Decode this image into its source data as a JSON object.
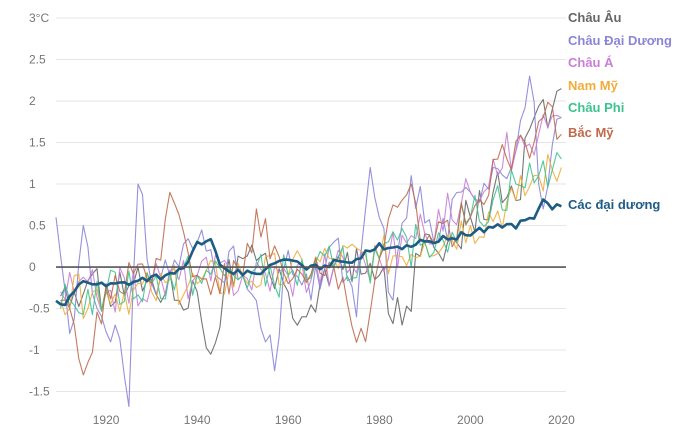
{
  "chart_data": {
    "type": "line",
    "title": "",
    "xlabel": "",
    "ylabel": "",
    "xlim": [
      1909,
      2021
    ],
    "ylim": [
      -1.65,
      3
    ],
    "grid": true,
    "legend_placement": "right",
    "x_ticks": [
      1920,
      1940,
      1960,
      1980,
      2000,
      2020
    ],
    "y_ticks": [
      -1.5,
      -1,
      -0.5,
      0,
      0.5,
      1,
      1.5,
      2,
      2.5,
      3
    ],
    "y_tick_labels": [
      "-1.5",
      "-1",
      "-0.5",
      "0",
      "0.5",
      "1",
      "1.5",
      "2",
      "2.5",
      "3°C"
    ],
    "series": [
      {
        "name": "Châu Âu",
        "color": "#666666",
        "anchors": [
          [
            1910,
            -0.35
          ],
          [
            1920,
            -0.25
          ],
          [
            1930,
            -0.15
          ],
          [
            1940,
            -0.3
          ],
          [
            1943,
            -1.05
          ],
          [
            1946,
            -0.2
          ],
          [
            1950,
            0.1
          ],
          [
            1956,
            -0.1
          ],
          [
            1960,
            -0.3
          ],
          [
            1963,
            -0.6
          ],
          [
            1970,
            0.0
          ],
          [
            1980,
            -0.1
          ],
          [
            1985,
            -0.7
          ],
          [
            1990,
            0.4
          ],
          [
            1995,
            0.3
          ],
          [
            2000,
            0.6
          ],
          [
            2005,
            0.9
          ],
          [
            2010,
            0.8
          ],
          [
            2014,
            1.8
          ],
          [
            2018,
            1.9
          ],
          [
            2020,
            2.15
          ]
        ]
      },
      {
        "name": "Châu Đại Dương",
        "color": "#8b85d8",
        "anchors": [
          [
            1909,
            0.6
          ],
          [
            1912,
            -0.8
          ],
          [
            1915,
            0.5
          ],
          [
            1918,
            -0.5
          ],
          [
            1922,
            -0.7
          ],
          [
            1925,
            -1.68
          ],
          [
            1927,
            1.0
          ],
          [
            1930,
            -0.2
          ],
          [
            1940,
            0.3
          ],
          [
            1950,
            -0.1
          ],
          [
            1957,
            -1.25
          ],
          [
            1960,
            0.2
          ],
          [
            1965,
            -0.4
          ],
          [
            1970,
            0.3
          ],
          [
            1975,
            -0.6
          ],
          [
            1978,
            1.2
          ],
          [
            1983,
            -0.4
          ],
          [
            1987,
            1.1
          ],
          [
            1992,
            0.3
          ],
          [
            2000,
            0.9
          ],
          [
            2005,
            1.2
          ],
          [
            2010,
            1.4
          ],
          [
            2013,
            2.3
          ],
          [
            2016,
            0.7
          ],
          [
            2020,
            1.8
          ]
        ]
      },
      {
        "name": "Châu Á",
        "color": "#c97fd6",
        "anchors": [
          [
            1910,
            -0.3
          ],
          [
            1920,
            -0.3
          ],
          [
            1930,
            -0.2
          ],
          [
            1940,
            -0.1
          ],
          [
            1950,
            -0.1
          ],
          [
            1960,
            -0.1
          ],
          [
            1970,
            0.0
          ],
          [
            1980,
            0.1
          ],
          [
            1990,
            0.4
          ],
          [
            2000,
            0.9
          ],
          [
            2005,
            1.3
          ],
          [
            2010,
            1.4
          ],
          [
            2015,
            1.6
          ],
          [
            2020,
            1.8
          ]
        ]
      },
      {
        "name": "Nam Mỹ",
        "color": "#f0ad3c",
        "anchors": [
          [
            1910,
            -0.4
          ],
          [
            1920,
            -0.3
          ],
          [
            1930,
            -0.3
          ],
          [
            1940,
            -0.2
          ],
          [
            1950,
            -0.1
          ],
          [
            1960,
            -0.1
          ],
          [
            1970,
            0.1
          ],
          [
            1980,
            0.1
          ],
          [
            1990,
            0.3
          ],
          [
            2000,
            0.5
          ],
          [
            2010,
            0.8
          ],
          [
            2015,
            1.1
          ],
          [
            2020,
            1.2
          ]
        ]
      },
      {
        "name": "Châu Phi",
        "color": "#3cc48f",
        "anchors": [
          [
            1910,
            -0.5
          ],
          [
            1920,
            -0.3
          ],
          [
            1930,
            -0.2
          ],
          [
            1940,
            -0.1
          ],
          [
            1950,
            -0.1
          ],
          [
            1960,
            -0.1
          ],
          [
            1970,
            0.0
          ],
          [
            1980,
            0.1
          ],
          [
            1990,
            0.3
          ],
          [
            2000,
            0.6
          ],
          [
            2010,
            1.0
          ],
          [
            2015,
            1.1
          ],
          [
            2020,
            1.3
          ]
        ]
      },
      {
        "name": "Bắc Mỹ",
        "color": "#bf6a4c",
        "anchors": [
          [
            1910,
            -0.4
          ],
          [
            1915,
            -1.3
          ],
          [
            1920,
            -0.2
          ],
          [
            1930,
            -0.2
          ],
          [
            1934,
            0.9
          ],
          [
            1940,
            -0.1
          ],
          [
            1950,
            -0.1
          ],
          [
            1953,
            0.7
          ],
          [
            1960,
            -0.2
          ],
          [
            1970,
            0.0
          ],
          [
            1977,
            -0.9
          ],
          [
            1980,
            0.1
          ],
          [
            1987,
            1.0
          ],
          [
            1990,
            0.3
          ],
          [
            2000,
            0.6
          ],
          [
            2006,
            1.3
          ],
          [
            2012,
            1.5
          ],
          [
            2016,
            1.8
          ],
          [
            2020,
            1.6
          ]
        ]
      },
      {
        "name": "Các đại dương",
        "color": "#1d5c84",
        "bold": true,
        "anchors": [
          [
            1909,
            -0.42
          ],
          [
            1911,
            -0.45
          ],
          [
            1913,
            -0.3
          ],
          [
            1915,
            -0.15
          ],
          [
            1918,
            -0.2
          ],
          [
            1920,
            -0.22
          ],
          [
            1925,
            -0.18
          ],
          [
            1930,
            -0.12
          ],
          [
            1935,
            -0.1
          ],
          [
            1938,
            0.05
          ],
          [
            1940,
            0.3
          ],
          [
            1943,
            0.3
          ],
          [
            1946,
            -0.05
          ],
          [
            1950,
            -0.08
          ],
          [
            1955,
            -0.05
          ],
          [
            1958,
            0.08
          ],
          [
            1960,
            0.08
          ],
          [
            1965,
            -0.02
          ],
          [
            1970,
            0.05
          ],
          [
            1975,
            0.1
          ],
          [
            1980,
            0.25
          ],
          [
            1985,
            0.25
          ],
          [
            1990,
            0.3
          ],
          [
            1995,
            0.35
          ],
          [
            2000,
            0.4
          ],
          [
            2005,
            0.5
          ],
          [
            2010,
            0.5
          ],
          [
            2014,
            0.62
          ],
          [
            2016,
            0.78
          ],
          [
            2018,
            0.72
          ],
          [
            2020,
            0.75
          ]
        ]
      }
    ]
  }
}
